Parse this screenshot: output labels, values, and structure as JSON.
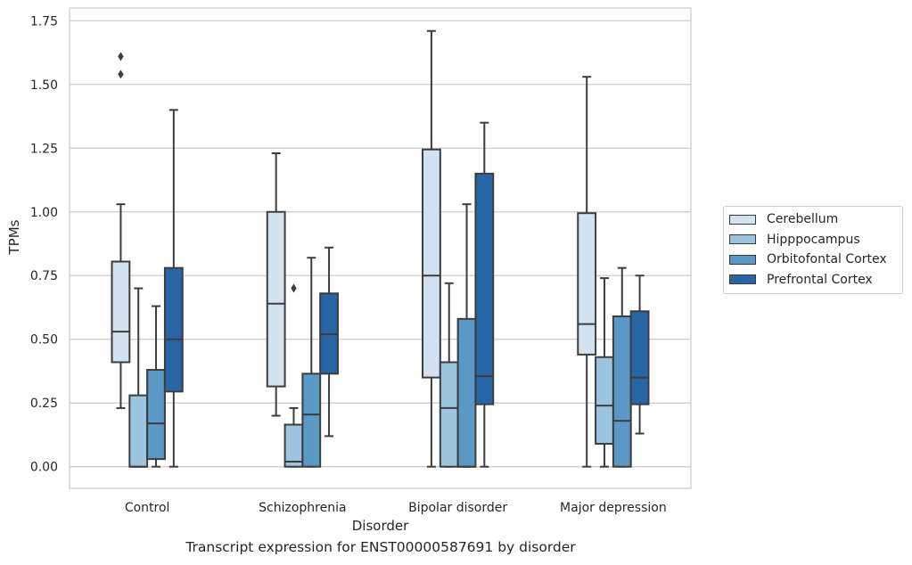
{
  "caption": "Transcript expression for ENST00000587691 by disorder",
  "chart_data": {
    "type": "box",
    "title": "",
    "xlabel": "Disorder",
    "ylabel": "TPMs",
    "ylim": [
      -0.085,
      1.8
    ],
    "yticks": [
      0.0,
      0.25,
      0.5,
      0.75,
      1.0,
      1.25,
      1.5,
      1.75
    ],
    "ytick_labels": [
      "0.00",
      "0.25",
      "0.50",
      "0.75",
      "1.00",
      "1.25",
      "1.50",
      "1.75"
    ],
    "grid": "horizontal",
    "legend_position": "right",
    "categories": [
      "Control",
      "Schizophrenia",
      "Bipolar disorder",
      "Major depression"
    ],
    "series": [
      {
        "name": "Cerebellum",
        "color": "#d3e2f0",
        "boxes": [
          {
            "whislo": 0.23,
            "q1": 0.41,
            "med": 0.53,
            "q3": 0.805,
            "whishi": 1.03,
            "fliers": [
              1.54,
              1.61
            ]
          },
          {
            "whislo": 0.2,
            "q1": 0.315,
            "med": 0.64,
            "q3": 1.0,
            "whishi": 1.23,
            "fliers": []
          },
          {
            "whislo": 0.0,
            "q1": 0.35,
            "med": 0.75,
            "q3": 1.245,
            "whishi": 1.71,
            "fliers": []
          },
          {
            "whislo": 0.0,
            "q1": 0.44,
            "med": 0.56,
            "q3": 0.995,
            "whishi": 1.53,
            "fliers": []
          }
        ]
      },
      {
        "name": "Hipppocampus",
        "color": "#9dc4df",
        "boxes": [
          {
            "whislo": 0.0,
            "q1": 0.0,
            "med": 0.0,
            "q3": 0.28,
            "whishi": 0.7,
            "fliers": []
          },
          {
            "whislo": 0.0,
            "q1": 0.0,
            "med": 0.02,
            "q3": 0.165,
            "whishi": 0.23,
            "fliers": [
              0.7
            ]
          },
          {
            "whislo": 0.0,
            "q1": 0.0,
            "med": 0.23,
            "q3": 0.41,
            "whishi": 0.72,
            "fliers": []
          },
          {
            "whislo": 0.0,
            "q1": 0.09,
            "med": 0.24,
            "q3": 0.43,
            "whishi": 0.74,
            "fliers": []
          }
        ]
      },
      {
        "name": "Orbitofontal Cortex",
        "color": "#5a99c6",
        "boxes": [
          {
            "whislo": 0.0,
            "q1": 0.03,
            "med": 0.17,
            "q3": 0.38,
            "whishi": 0.63,
            "fliers": []
          },
          {
            "whislo": 0.0,
            "q1": 0.0,
            "med": 0.205,
            "q3": 0.365,
            "whishi": 0.82,
            "fliers": []
          },
          {
            "whislo": 0.0,
            "q1": 0.0,
            "med": 0.0,
            "q3": 0.58,
            "whishi": 1.03,
            "fliers": []
          },
          {
            "whislo": 0.0,
            "q1": 0.0,
            "med": 0.18,
            "q3": 0.59,
            "whishi": 0.78,
            "fliers": []
          }
        ]
      },
      {
        "name": "Prefrontal Cortex",
        "color": "#2865a4",
        "boxes": [
          {
            "whislo": 0.0,
            "q1": 0.295,
            "med": 0.5,
            "q3": 0.78,
            "whishi": 1.4,
            "fliers": []
          },
          {
            "whislo": 0.12,
            "q1": 0.365,
            "med": 0.52,
            "q3": 0.68,
            "whishi": 0.86,
            "fliers": []
          },
          {
            "whislo": 0.0,
            "q1": 0.245,
            "med": 0.355,
            "q3": 1.15,
            "whishi": 1.35,
            "fliers": []
          },
          {
            "whislo": 0.13,
            "q1": 0.245,
            "med": 0.35,
            "q3": 0.61,
            "whishi": 0.75,
            "fliers": []
          }
        ]
      }
    ]
  }
}
